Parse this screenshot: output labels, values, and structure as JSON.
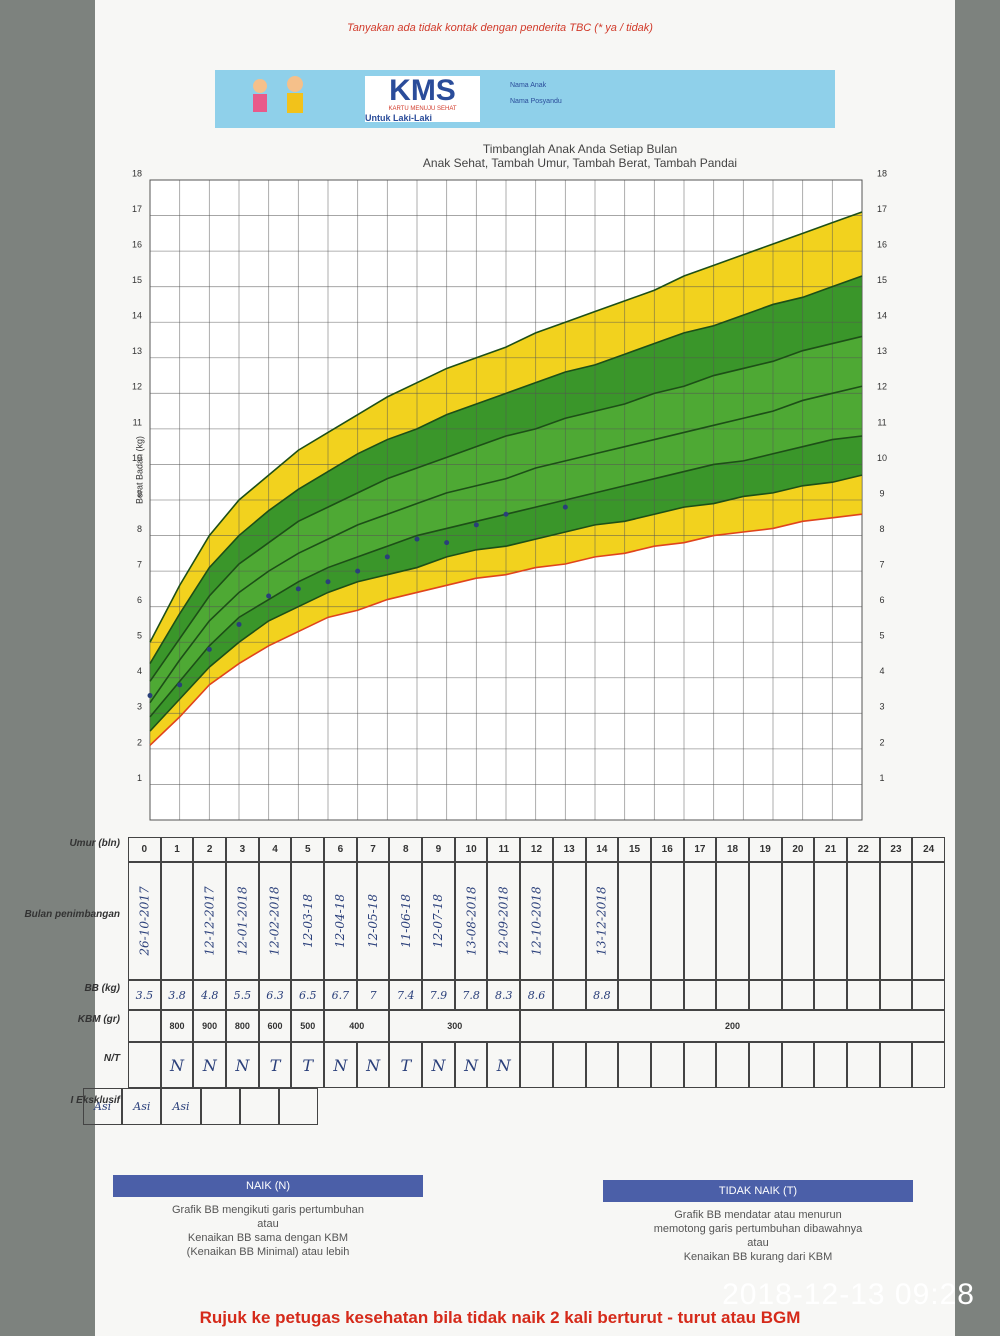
{
  "header": {
    "note": "Tanyakan ada tidak kontak dengan penderita TBC (* ya / tidak)",
    "logo": "KMS",
    "logo_sub": "KARTU MENUJU SEHAT",
    "for": "Untuk Laki-Laki",
    "name_label": "Nama Anak",
    "posyandu_label": "Nama Posyandu"
  },
  "chart_data": {
    "type": "line",
    "title": "Timbanglah Anak Anda Setiap Bulan",
    "subtitle": "Anak Sehat, Tambah Umur, Tambah Berat, Tambah Pandai",
    "y_label": "Berat Badan (kg)",
    "x": [
      0,
      1,
      2,
      3,
      4,
      5,
      6,
      7,
      8,
      9,
      10,
      11,
      12,
      13,
      14,
      15,
      16,
      17,
      18,
      19,
      20,
      21,
      22,
      23,
      24
    ],
    "xlim": [
      0,
      24
    ],
    "ylim": [
      0,
      18
    ],
    "yticks": [
      1,
      2,
      3,
      4,
      5,
      6,
      7,
      8,
      9,
      10,
      11,
      12,
      13,
      14,
      15,
      16,
      17,
      18
    ],
    "grid": true,
    "band_colors": [
      "#f2d21e",
      "#3a962a",
      "#4ea934",
      "#4ea934",
      "#3a962a",
      "#f2d21e"
    ],
    "series": [
      {
        "color": "#e0441c",
        "values": [
          2.1,
          2.9,
          3.8,
          4.4,
          4.9,
          5.3,
          5.7,
          5.9,
          6.2,
          6.4,
          6.6,
          6.8,
          6.9,
          7.1,
          7.2,
          7.4,
          7.5,
          7.7,
          7.8,
          8.0,
          8.1,
          8.2,
          8.4,
          8.5,
          8.6
        ]
      },
      {
        "color": "#1d4f17",
        "values": [
          2.5,
          3.4,
          4.3,
          5.0,
          5.6,
          6.0,
          6.4,
          6.7,
          6.9,
          7.1,
          7.4,
          7.6,
          7.7,
          7.9,
          8.1,
          8.3,
          8.4,
          8.6,
          8.8,
          8.9,
          9.1,
          9.2,
          9.4,
          9.5,
          9.7
        ]
      },
      {
        "color": "#1d4f17",
        "values": [
          2.9,
          3.9,
          4.9,
          5.7,
          6.2,
          6.7,
          7.1,
          7.4,
          7.7,
          8.0,
          8.2,
          8.4,
          8.6,
          8.8,
          9.0,
          9.2,
          9.4,
          9.6,
          9.8,
          10.0,
          10.1,
          10.3,
          10.5,
          10.7,
          10.8
        ]
      },
      {
        "color": "#1d4f17",
        "values": [
          3.3,
          4.5,
          5.6,
          6.4,
          7.0,
          7.5,
          7.9,
          8.3,
          8.6,
          8.9,
          9.2,
          9.4,
          9.6,
          9.9,
          10.1,
          10.3,
          10.5,
          10.7,
          10.9,
          11.1,
          11.3,
          11.5,
          11.8,
          12.0,
          12.2
        ]
      },
      {
        "color": "#1d4f17",
        "values": [
          3.9,
          5.1,
          6.3,
          7.2,
          7.8,
          8.4,
          8.8,
          9.2,
          9.6,
          9.9,
          10.2,
          10.5,
          10.8,
          11.0,
          11.3,
          11.5,
          11.7,
          12.0,
          12.2,
          12.5,
          12.7,
          12.9,
          13.2,
          13.4,
          13.6
        ]
      },
      {
        "color": "#1d4f17",
        "values": [
          4.4,
          5.8,
          7.1,
          8.0,
          8.7,
          9.3,
          9.8,
          10.3,
          10.7,
          11.0,
          11.4,
          11.7,
          12.0,
          12.3,
          12.6,
          12.8,
          13.1,
          13.4,
          13.7,
          13.9,
          14.2,
          14.5,
          14.7,
          15.0,
          15.3
        ]
      },
      {
        "color": "#1d4f17",
        "values": [
          5.0,
          6.6,
          8.0,
          9.0,
          9.7,
          10.4,
          10.9,
          11.4,
          11.9,
          12.3,
          12.7,
          13.0,
          13.3,
          13.7,
          14.0,
          14.3,
          14.6,
          14.9,
          15.3,
          15.6,
          15.9,
          16.2,
          16.5,
          16.8,
          17.1
        ]
      },
      {
        "color": "#2a3f7a",
        "style": "markers",
        "values": [
          3.5,
          3.8,
          4.8,
          5.5,
          6.3,
          6.5,
          6.7,
          7,
          7.4,
          7.9,
          7.8,
          8.3,
          8.6,
          null,
          8.8,
          null,
          null,
          null,
          null,
          null,
          null,
          null,
          null,
          null,
          null
        ]
      }
    ]
  },
  "table": {
    "labels": {
      "age": "Umur (bln)",
      "date": "Bulan penimbangan",
      "weight": "BB (kg)",
      "kbm": "KBM (gr)",
      "nt": "N/T",
      "asi": "I Eksklusif"
    },
    "dates": [
      "26-10-2017",
      null,
      "12-12-2017",
      "12-01-2018",
      "12-02-2018",
      "12-03-18",
      "12-04-18",
      "12-05-18",
      "11-06-18",
      "12-07-18",
      "13-08-2018",
      "12-09-2018",
      "12-10-2018",
      null,
      "13-12-2018",
      null,
      null,
      null,
      null,
      null,
      null,
      null,
      null,
      null,
      null
    ],
    "weights": [
      3.5,
      3.8,
      4.8,
      5.5,
      6.3,
      6.5,
      6.7,
      7,
      7.4,
      7.9,
      7.8,
      8.3,
      8.6,
      null,
      8.8,
      null,
      null,
      null,
      null,
      null,
      null,
      null,
      null,
      null,
      null
    ],
    "kbm": [
      800,
      900,
      800,
      600,
      500,
      400,
      300,
      200
    ],
    "nt": [
      null,
      "N",
      "N",
      "N",
      "T",
      "T",
      "N",
      "N",
      "T",
      "N",
      "N",
      "N",
      null,
      null,
      null,
      null,
      null,
      null,
      null,
      null,
      null,
      null,
      null,
      null,
      null
    ],
    "asi": [
      "Asi",
      "Asi",
      "Asi",
      null,
      null,
      null
    ]
  },
  "legend": {
    "up_title": "NAIK (N)",
    "up_lines": [
      "Grafik BB mengikuti garis pertumbuhan",
      "atau",
      "Kenaikan BB sama dengan KBM",
      "(Kenaikan BB Minimal) atau lebih"
    ],
    "down_title": "TIDAK NAIK (T)",
    "down_lines": [
      "Grafik BB mendatar atau menurun",
      "memotong garis pertumbuhan dibawahnya",
      "atau",
      "Kenaikan BB kurang dari KBM"
    ]
  },
  "footer": "Rujuk ke petugas kesehatan bila tidak naik 2 kali berturut - turut atau BGM",
  "timestamp": "2018-12-13 09:28"
}
